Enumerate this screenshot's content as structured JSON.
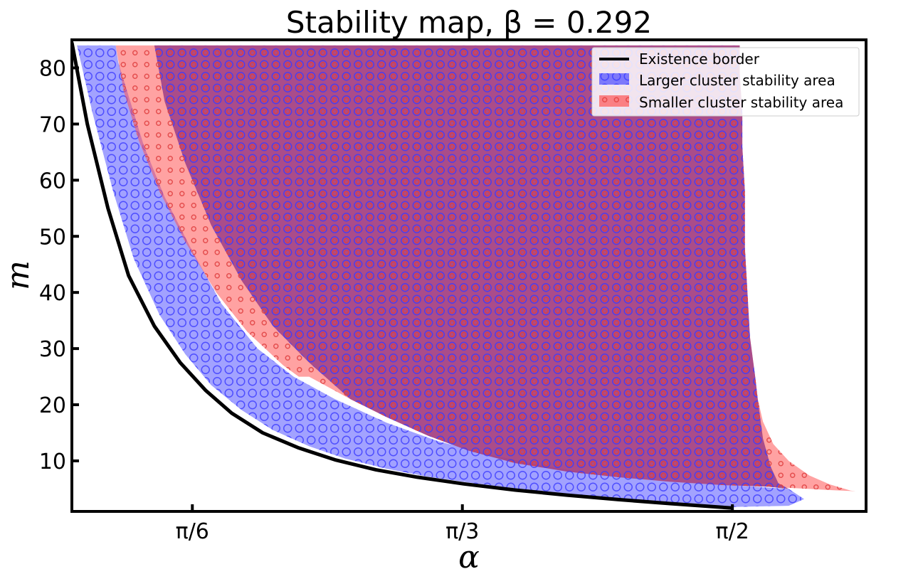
{
  "chart_data": {
    "type": "area",
    "title": "Stability map, β = 0.292",
    "xlabel": "α",
    "ylabel": "m",
    "xlim": [
      0.29,
      1.83
    ],
    "ylim": [
      1,
      85
    ],
    "x_ticks": [
      {
        "value": 0.5236,
        "label": "π/6"
      },
      {
        "value": 1.0472,
        "label": "π/3"
      },
      {
        "value": 1.5708,
        "label": "π/2"
      }
    ],
    "y_ticks": [
      {
        "value": 10,
        "label": "10"
      },
      {
        "value": 20,
        "label": "20"
      },
      {
        "value": 30,
        "label": "30"
      },
      {
        "value": 40,
        "label": "40"
      },
      {
        "value": 50,
        "label": "50"
      },
      {
        "value": 60,
        "label": "60"
      },
      {
        "value": 70,
        "label": "70"
      },
      {
        "value": 80,
        "label": "80"
      }
    ],
    "legend_position": "top-right",
    "grid": false,
    "series": [
      {
        "name": "Existence border",
        "kind": "line",
        "color": "#000000",
        "points": [
          [
            0.29,
            84.5
          ],
          [
            0.32,
            70
          ],
          [
            0.36,
            55
          ],
          [
            0.4,
            43
          ],
          [
            0.45,
            34
          ],
          [
            0.5,
            27.5
          ],
          [
            0.55,
            22.5
          ],
          [
            0.6,
            18.5
          ],
          [
            0.66,
            15
          ],
          [
            0.73,
            12.3
          ],
          [
            0.8,
            10.2
          ],
          [
            0.88,
            8.4
          ],
          [
            0.96,
            7.1
          ],
          [
            1.05,
            5.9
          ],
          [
            1.15,
            4.8
          ],
          [
            1.25,
            3.9
          ],
          [
            1.35,
            3.1
          ],
          [
            1.45,
            2.4
          ],
          [
            1.5708,
            1.6
          ]
        ]
      },
      {
        "name": "Larger cluster stability area",
        "kind": "area",
        "color": "#5555ff",
        "points": [
          [
            0.3,
            84
          ],
          [
            0.33,
            72
          ],
          [
            0.37,
            58
          ],
          [
            0.41,
            46
          ],
          [
            0.46,
            36
          ],
          [
            0.51,
            29
          ],
          [
            0.56,
            23.5
          ],
          [
            0.62,
            19
          ],
          [
            0.68,
            15.5
          ],
          [
            0.75,
            12.6
          ],
          [
            0.82,
            10.4
          ],
          [
            0.9,
            8.6
          ],
          [
            0.98,
            7.2
          ],
          [
            1.07,
            6
          ],
          [
            1.17,
            4.9
          ],
          [
            1.27,
            4
          ],
          [
            1.37,
            3.2
          ],
          [
            1.47,
            2.5
          ],
          [
            1.5708,
            1.8
          ],
          [
            1.68,
            2
          ],
          [
            1.71,
            3.2
          ],
          [
            1.68,
            5
          ],
          [
            1.6,
            5.5
          ],
          [
            1.5,
            6
          ],
          [
            1.4,
            6.7
          ],
          [
            1.3,
            7.7
          ],
          [
            1.2,
            9.2
          ],
          [
            1.1,
            11.1
          ],
          [
            1.0,
            13.5
          ],
          [
            0.9,
            16.8
          ],
          [
            0.8,
            21
          ],
          [
            0.72,
            25
          ],
          [
            0.65,
            30
          ],
          [
            0.58,
            38
          ],
          [
            0.52,
            48
          ],
          [
            0.47,
            57
          ],
          [
            0.43,
            66
          ],
          [
            0.4,
            75
          ],
          [
            0.38,
            81
          ],
          [
            0.375,
            84
          ]
        ]
      },
      {
        "name": "Smaller cluster stability area",
        "kind": "area",
        "color": "#ff5555",
        "points": [
          [
            0.375,
            84
          ],
          [
            0.39,
            76
          ],
          [
            0.42,
            67
          ],
          [
            0.46,
            58
          ],
          [
            0.51,
            49
          ],
          [
            0.57,
            40
          ],
          [
            0.63,
            33
          ],
          [
            0.7,
            27
          ],
          [
            0.73,
            25
          ],
          [
            0.75,
            25
          ],
          [
            0.78,
            23.5
          ],
          [
            0.83,
            21
          ],
          [
            0.9,
            17.8
          ],
          [
            0.98,
            14.5
          ],
          [
            1.06,
            11.8
          ],
          [
            1.15,
            9.6
          ],
          [
            1.25,
            8.1
          ],
          [
            1.35,
            7.1
          ],
          [
            1.45,
            6.3
          ],
          [
            1.55,
            5.7
          ],
          [
            1.64,
            5.4
          ],
          [
            1.7,
            5.1
          ],
          [
            1.76,
            4.8
          ],
          [
            1.81,
            4.6
          ],
          [
            1.8,
            4.7
          ],
          [
            1.76,
            5.8
          ],
          [
            1.72,
            7.4
          ],
          [
            1.68,
            10
          ],
          [
            1.65,
            13
          ],
          [
            1.63,
            17
          ],
          [
            1.62,
            21
          ],
          [
            1.615,
            25
          ],
          [
            1.605,
            32
          ],
          [
            1.6,
            40
          ],
          [
            1.595,
            48
          ],
          [
            1.595,
            58
          ],
          [
            1.59,
            66
          ],
          [
            1.59,
            72
          ],
          [
            1.585,
            79
          ],
          [
            1.585,
            84
          ]
        ]
      },
      {
        "name": "Overlap (both stable)",
        "kind": "overlap",
        "color": "#9b3d86",
        "points": [
          [
            0.45,
            84
          ],
          [
            0.47,
            74
          ],
          [
            0.51,
            63
          ],
          [
            0.56,
            52
          ],
          [
            0.62,
            42
          ],
          [
            0.68,
            34
          ],
          [
            0.75,
            27.5
          ],
          [
            0.83,
            21
          ],
          [
            0.9,
            17.8
          ],
          [
            0.98,
            14.5
          ],
          [
            1.06,
            11.8
          ],
          [
            1.15,
            9.6
          ],
          [
            1.25,
            8.1
          ],
          [
            1.35,
            7.1
          ],
          [
            1.45,
            6.3
          ],
          [
            1.55,
            5.7
          ],
          [
            1.64,
            5.4
          ],
          [
            1.68,
            5
          ],
          [
            1.66,
            6
          ],
          [
            1.645,
            9
          ],
          [
            1.63,
            14
          ],
          [
            1.62,
            21
          ],
          [
            1.615,
            25
          ],
          [
            1.605,
            32
          ],
          [
            1.6,
            40
          ],
          [
            1.595,
            48
          ],
          [
            1.595,
            58
          ],
          [
            1.59,
            66
          ],
          [
            1.59,
            72
          ],
          [
            1.585,
            79
          ],
          [
            1.585,
            84
          ]
        ]
      }
    ]
  },
  "legend": {
    "items": [
      {
        "label": "Existence border",
        "type": "line",
        "color": "#000000"
      },
      {
        "label": "Larger cluster stability area",
        "type": "area",
        "color": "#5555ff"
      },
      {
        "label": "Smaller cluster stability area",
        "type": "area",
        "color": "#ff5555"
      }
    ]
  }
}
